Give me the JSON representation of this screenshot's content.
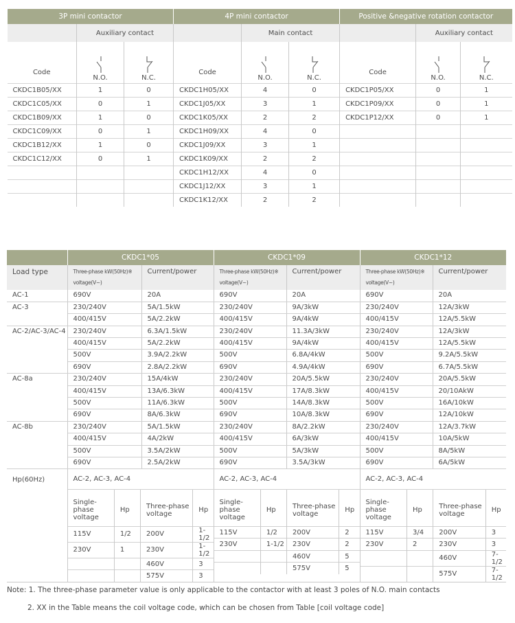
{
  "top_table": {
    "sections": [
      {
        "title": "3P mini contactor",
        "contact_label": "Auxiliary contact",
        "code_label": "Code",
        "no_label": "N.O.",
        "nc_label": "N.C.",
        "rows": [
          [
            "CKDC1B05/XX",
            "1",
            "0"
          ],
          [
            "CKDC1C05/XX",
            "0",
            "1"
          ],
          [
            "CKDC1B09/XX",
            "1",
            "0"
          ],
          [
            "CKDC1C09/XX",
            "0",
            "1"
          ],
          [
            "CKDC1B12/XX",
            "1",
            "0"
          ],
          [
            "CKDC1C12/XX",
            "0",
            "1"
          ]
        ]
      },
      {
        "title": "4P mini contactor",
        "contact_label": "Main contact",
        "code_label": "Code",
        "no_label": "N.O.",
        "nc_label": "N.C.",
        "rows": [
          [
            "CKDC1H05/XX",
            "4",
            "0"
          ],
          [
            "CKDC1J05/XX",
            "3",
            "1"
          ],
          [
            "CKDC1K05/XX",
            "2",
            "2"
          ],
          [
            "CKDC1H09/XX",
            "4",
            "0"
          ],
          [
            "CKDC1J09/XX",
            "3",
            "1"
          ],
          [
            "CKDC1K09/XX",
            "2",
            "2"
          ],
          [
            "CKDC1H12/XX",
            "4",
            "0"
          ],
          [
            "CKDC1J12/XX",
            "3",
            "1"
          ],
          [
            "CKDC1K12/XX",
            "2",
            "2"
          ]
        ]
      },
      {
        "title": "Positive &negative rotation contactor",
        "contact_label": "Auxiliary contact",
        "code_label": "Code",
        "no_label": "N.O.",
        "nc_label": "N.C.",
        "rows": [
          [
            "CKDC1P05/XX",
            "0",
            "1"
          ],
          [
            "CKDC1P09/XX",
            "0",
            "1"
          ],
          [
            "CKDC1P12/XX",
            "0",
            "1"
          ]
        ]
      }
    ]
  },
  "bottom_table": {
    "load_type_label": "Load type",
    "groups": [
      "CKDC1*05",
      "CKDC1*09",
      "CKDC1*12"
    ],
    "col_headers": [
      "Three-phase kW(50Hz)※ voltage(V~)",
      "Current/power"
    ],
    "loads": [
      {
        "type": "AC-1",
        "rows": [
          [
            "690V",
            "20A",
            "690V",
            "20A",
            "690V",
            "20A"
          ]
        ]
      },
      {
        "type": "AC-3",
        "rows": [
          [
            "230/240V",
            "5A/1.5kW",
            "230/240V",
            "9A/3kW",
            "230/240V",
            "12A/3kW"
          ],
          [
            "400/415V",
            "5A/2.2kW",
            "400/415V",
            "9A/4kW",
            "400/415V",
            "12A/5.5kW"
          ]
        ]
      },
      {
        "type": "AC-2/AC-3/AC-4",
        "rows": [
          [
            "230/240V",
            "6.3A/1.5kW",
            "230/240V",
            "11.3A/3kW",
            "230/240V",
            "12A/3kW"
          ],
          [
            "400/415V",
            "5A/2.2kW",
            "400/415V",
            "9A/4kW",
            "400/415V",
            "12A/5.5kW"
          ],
          [
            "500V",
            "3.9A/2.2kW",
            "500V",
            "6.8A/4kW",
            "500V",
            "9.2A/5.5kW"
          ],
          [
            "690V",
            "2.8A/2.2kW",
            "690V",
            "4.9A/4kW",
            "690V",
            "6.7A/5.5kW"
          ]
        ]
      },
      {
        "type": "AC-8a",
        "rows": [
          [
            "230/240V",
            "15A/4kW",
            "230/240V",
            "20A/5.5kW",
            "230/240V",
            "20A/5.5kW"
          ],
          [
            "400/415V",
            "13A/6.3kW",
            "400/415V",
            "17A/8.3kW",
            "400/415V",
            "20/10AkW"
          ],
          [
            "500V",
            "11A/6.3kW",
            "500V",
            "14A/8.3kW",
            "500V",
            "16A/10kW"
          ],
          [
            "690V",
            "8A/6.3kW",
            "690V",
            "10A/8.3kW",
            "690V",
            "12A/10kW"
          ]
        ]
      },
      {
        "type": "AC-8b",
        "rows": [
          [
            "230/240V",
            "5A/1.5kW",
            "230/240V",
            "8A/2.2kW",
            "230/240V",
            "12A/3.7kW"
          ],
          [
            "400/415V",
            "4A/2kW",
            "400/415V",
            "6A/3kW",
            "400/415V",
            "10A/5kW"
          ],
          [
            "500V",
            "3.5A/2kW",
            "500V",
            "5A/3kW",
            "500V",
            "8A/5kW"
          ],
          [
            "690V",
            "2.5A/2kW",
            "690V",
            "3.5A/3kW",
            "690V",
            "6A/5kW"
          ]
        ]
      }
    ],
    "hp": {
      "label": "Hp(60Hz)",
      "headers": [
        "Single-phase voltage",
        "Hp",
        "Three-phase voltage",
        "Hp"
      ],
      "groups": [
        {
          "category": "AC-2, AC-3, AC-4",
          "rows": [
            [
              "115V",
              "1/2",
              "200V",
              "1-1/2"
            ],
            [
              "230V",
              "1",
              "230V",
              "1-1/2"
            ],
            [
              "",
              "",
              "460V",
              "3"
            ],
            [
              "",
              "",
              "575V",
              "3"
            ]
          ]
        },
        {
          "category": "AC-2, AC-3, AC-4",
          "rows": [
            [
              "115V",
              "1/2",
              "200V",
              "2"
            ],
            [
              "230V",
              "1-1/2",
              "230V",
              "2"
            ],
            [
              "",
              "",
              "460V",
              "5"
            ],
            [
              "",
              "",
              "575V",
              "5"
            ]
          ]
        },
        {
          "category": "AC-2, AC-3, AC-4",
          "rows": [
            [
              "115V",
              "3/4",
              "200V",
              "3"
            ],
            [
              "230V",
              "2",
              "230V",
              "3"
            ],
            [
              "",
              "",
              "460V",
              "7-1/2"
            ],
            [
              "",
              "",
              "575V",
              "7-1/2"
            ]
          ]
        }
      ]
    }
  },
  "notes": [
    "Note: 1. The three-phase parameter value is only applicable to the contactor with at least 3 poles of N.O. main contacts",
    "2.  XX in the Table means the coil voltage code, which can be chosen from  Table [coil voltage code]"
  ],
  "colors": {
    "header": "#a5aa8c",
    "subheader": "#ededed"
  },
  "icons": [
    "normally-open-contact-icon",
    "normally-closed-contact-icon"
  ]
}
